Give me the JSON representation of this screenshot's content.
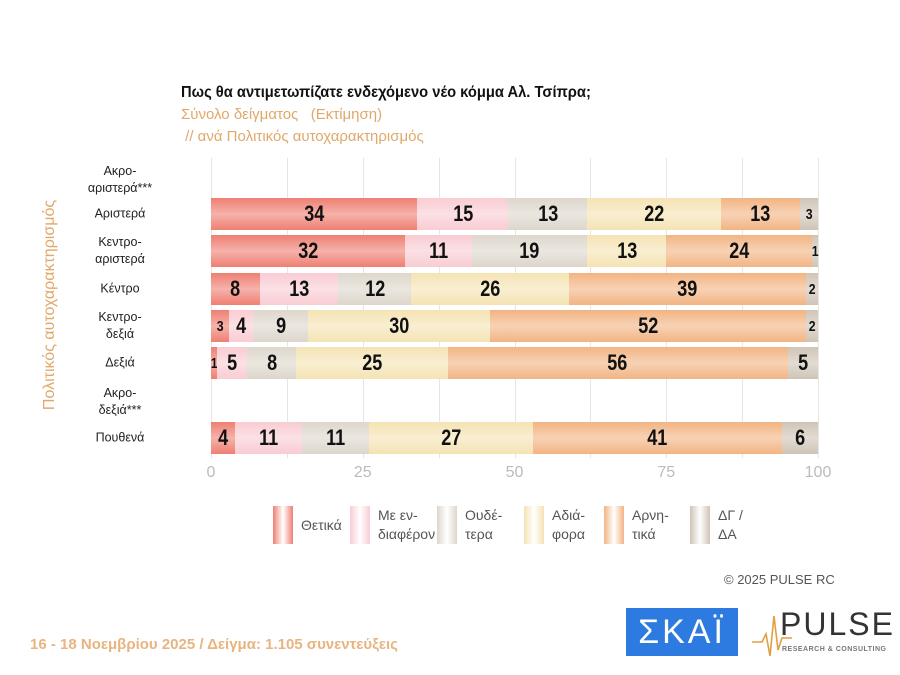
{
  "chart_data": {
    "type": "bar",
    "stacked": true,
    "orientation": "horizontal",
    "title": "Πως θα αντιμετωπίζατε ενδεχόμενο νέο κόμμα Αλ. Τσίπρα;",
    "subtitle": "Σύνολο δείγματος   (Εκτίμηση)",
    "subtitle2": " // ανά Πολιτικός αυτοχαρακτηρισμός",
    "ylabel": "Πολιτικός αυτοχαρακτηρισμός",
    "xlim": [
      0,
      100
    ],
    "xticks": [
      "0",
      "25",
      "50",
      "75",
      "100"
    ],
    "grid": true,
    "legend": "bottom",
    "categories": [
      "Ακρο-\nαριστερά***",
      "Αριστερά",
      "Κεντρο-\nαριστερά",
      "Κέντρο",
      "Κεντρο-\nδεξιά",
      "Δεξιά",
      "Ακρο-\nδεξιά***",
      "Πουθενά"
    ],
    "series": [
      {
        "name": "Θετικά",
        "legend": "Θετικά",
        "color": "#ef7f72",
        "values": [
          null,
          34,
          32,
          8,
          3,
          1,
          null,
          4
        ]
      },
      {
        "name": "Με ενδιαφέρον",
        "legend": "Με εν-\nδιαφέρον",
        "color": "#f8ccd3",
        "values": [
          null,
          15,
          11,
          13,
          4,
          5,
          null,
          11
        ]
      },
      {
        "name": "Ουδέτερα",
        "legend": "Ουδέ-\nτερα",
        "color": "#ddd6cb",
        "values": [
          null,
          13,
          19,
          12,
          9,
          8,
          null,
          11
        ]
      },
      {
        "name": "Αδιάφορα",
        "legend": "Αδιά-\nφορα",
        "color": "#f4e3b3",
        "values": [
          null,
          22,
          13,
          26,
          30,
          25,
          null,
          27
        ]
      },
      {
        "name": "Αρνητικά",
        "legend": "Αρνη-\nτικά",
        "color": "#f2b483",
        "values": [
          null,
          13,
          24,
          39,
          52,
          56,
          null,
          41
        ]
      },
      {
        "name": "ΔΓ / ΔΑ",
        "legend": "ΔΓ /\nΔΑ",
        "color": "#cfc4b6",
        "values": [
          null,
          3,
          1,
          2,
          2,
          5,
          null,
          6
        ]
      }
    ]
  },
  "copyright": "©  2025  PULSE RC",
  "footer": "16 - 18 Νοεμβρίου 2025  /  Δείγμα:  1.105 συνεντεύξεις",
  "logos": {
    "skai": "ΣΚΑΪ",
    "pulse": "PULSE",
    "pulse_sub": "RESEARCH & CONSULTING"
  }
}
